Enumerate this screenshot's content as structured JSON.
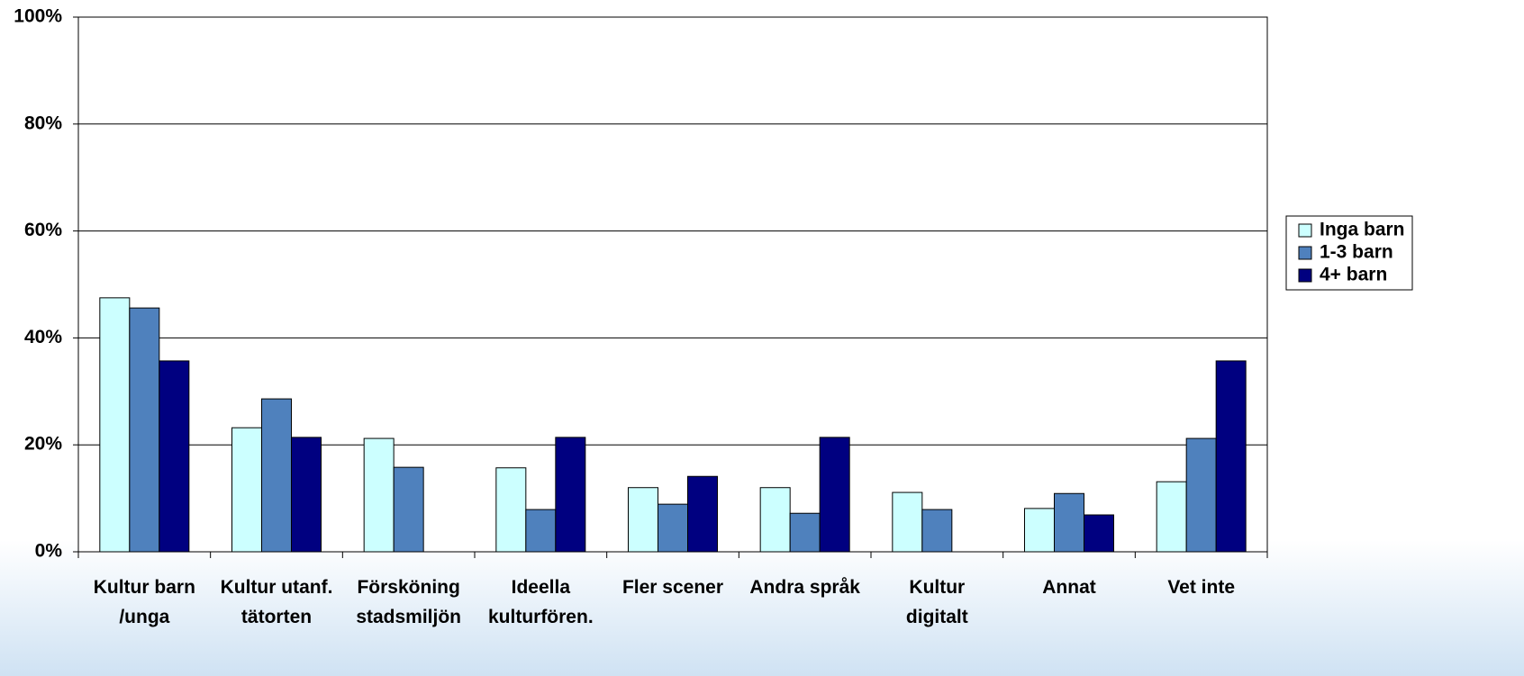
{
  "chart_data": {
    "type": "bar",
    "categories": [
      "Kultur barn\n/unga",
      "Kultur utanf.\ntätorten",
      "Försköning\nstadsmiljön",
      "Ideella\nkulturfören.",
      "Fler scener",
      "Andra språk",
      "Kultur\ndigitalt",
      "Annat",
      "Vet inte"
    ],
    "series": [
      {
        "name": "Inga barn",
        "color": "#ccffff",
        "values": [
          47.5,
          23.2,
          21.2,
          15.7,
          12.0,
          12.0,
          11.1,
          8.1,
          13.1
        ]
      },
      {
        "name": "1-3 barn",
        "color": "#4f81bd",
        "values": [
          45.6,
          28.6,
          15.8,
          7.9,
          8.9,
          7.2,
          7.9,
          10.9,
          21.2
        ]
      },
      {
        "name": "4+ barn",
        "color": "#000080",
        "values": [
          35.7,
          21.4,
          0,
          21.4,
          14.1,
          21.4,
          0,
          6.9,
          35.7
        ]
      }
    ],
    "ylim": [
      0,
      100
    ],
    "yticks": [
      {
        "value": 0,
        "label": "0%"
      },
      {
        "value": 20,
        "label": "20%"
      },
      {
        "value": 40,
        "label": "40%"
      },
      {
        "value": 60,
        "label": "60%"
      },
      {
        "value": 80,
        "label": "80%"
      },
      {
        "value": 100,
        "label": "100%"
      }
    ],
    "grid": true,
    "legend": "right"
  }
}
